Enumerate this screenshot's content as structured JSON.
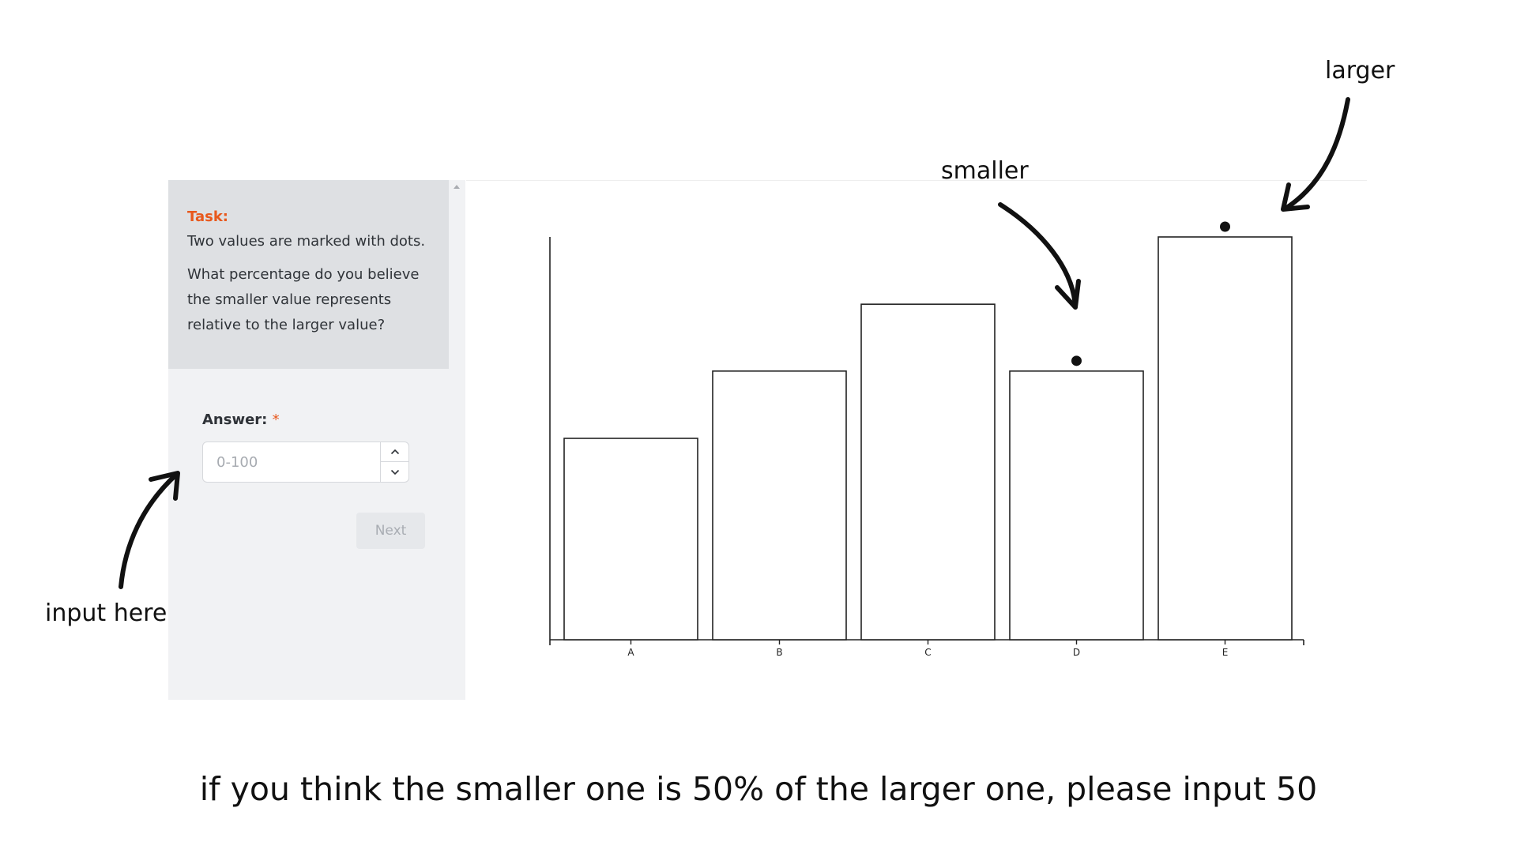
{
  "task_panel": {
    "heading": "Task:",
    "line1": "Two values are marked with dots.",
    "line2": "What percentage do you believe",
    "line3": "the smaller value represents",
    "line4": "relative to the larger value?"
  },
  "answer": {
    "label": "Answer:",
    "required_mark": "*",
    "value": "",
    "placeholder": "0-100"
  },
  "next_button": {
    "label": "Next"
  },
  "annotations": {
    "larger": "larger",
    "smaller": "smaller",
    "input_here": "input here",
    "caption": "if you think the smaller one is 50% of the larger one, please input 50"
  },
  "chart_data": {
    "type": "bar",
    "categories": [
      "A",
      "B",
      "C",
      "D",
      "E"
    ],
    "values": [
      50,
      66.7,
      83.3,
      66.7,
      100
    ],
    "marked": [
      "D",
      "E"
    ],
    "ylim": [
      0,
      100
    ],
    "title": "",
    "xlabel": "",
    "ylabel": "",
    "grid": false,
    "y_tick_labels": false
  }
}
